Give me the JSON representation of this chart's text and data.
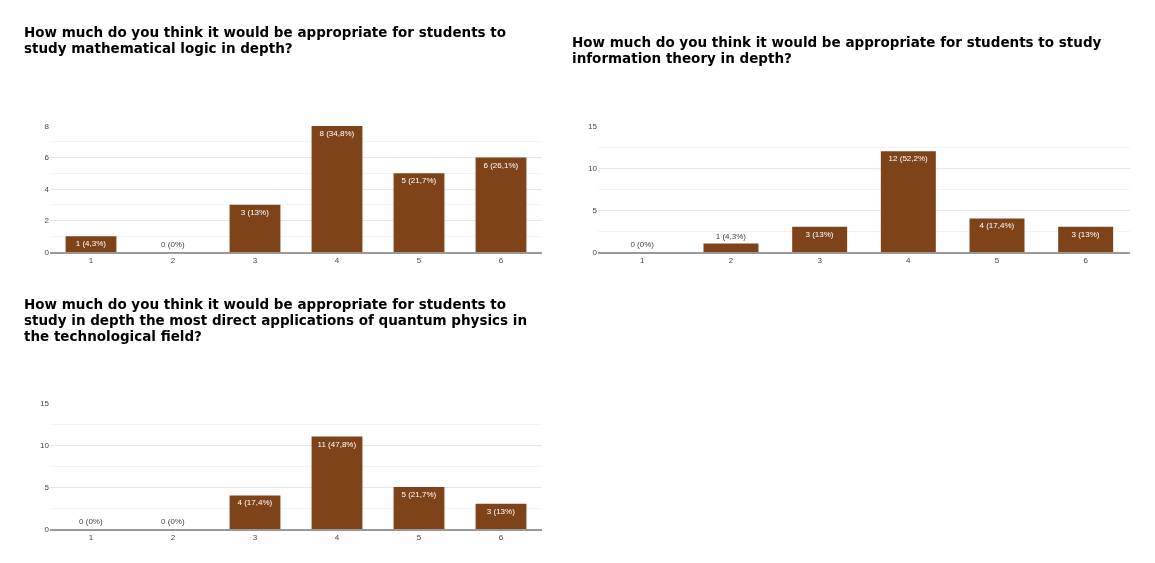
{
  "chart_data": [
    {
      "type": "bar",
      "title": "How much do you think it would be appropriate for students to study mathematical logic in depth?",
      "categories": [
        "1",
        "2",
        "3",
        "4",
        "5",
        "6"
      ],
      "values": [
        1,
        0,
        3,
        8,
        5,
        6
      ],
      "value_labels": [
        "1 (4,3%)",
        "0 (0%)",
        "3 (13%)",
        "8 (34,8%)",
        "5 (21,7%)",
        "6 (26,1%)"
      ],
      "color": "#7f431a",
      "ylim": [
        0,
        8
      ],
      "yticks": [
        0,
        2,
        4,
        6,
        8
      ],
      "grid": "y",
      "legend": false
    },
    {
      "type": "bar",
      "title": "How much do you think it would be appropriate for students to study information theory in depth?",
      "categories": [
        "1",
        "2",
        "3",
        "4",
        "5",
        "6"
      ],
      "values": [
        0,
        1,
        3,
        12,
        4,
        3
      ],
      "value_labels": [
        "0 (0%)",
        "1 (4,3%)",
        "3 (13%)",
        "12 (52,2%)",
        "4 (17,4%)",
        "3 (13%)"
      ],
      "color": "#7f431a",
      "ylim": [
        0,
        15
      ],
      "yticks": [
        0,
        5,
        10,
        15
      ],
      "grid": "y",
      "legend": false
    },
    {
      "type": "bar",
      "title": "How much do you think it would be appropriate for students to study in depth the most direct applications of quantum physics in the technological field?",
      "categories": [
        "1",
        "2",
        "3",
        "4",
        "5",
        "6"
      ],
      "values": [
        0,
        0,
        4,
        11,
        5,
        3
      ],
      "value_labels": [
        "0 (0%)",
        "0 (0%)",
        "4 (17,4%)",
        "11 (47,8%)",
        "5 (21,7%)",
        "3 (13%)"
      ],
      "color": "#7f431a",
      "ylim": [
        0,
        15
      ],
      "yticks": [
        0,
        5,
        10,
        15
      ],
      "grid": "y",
      "legend": false
    }
  ]
}
